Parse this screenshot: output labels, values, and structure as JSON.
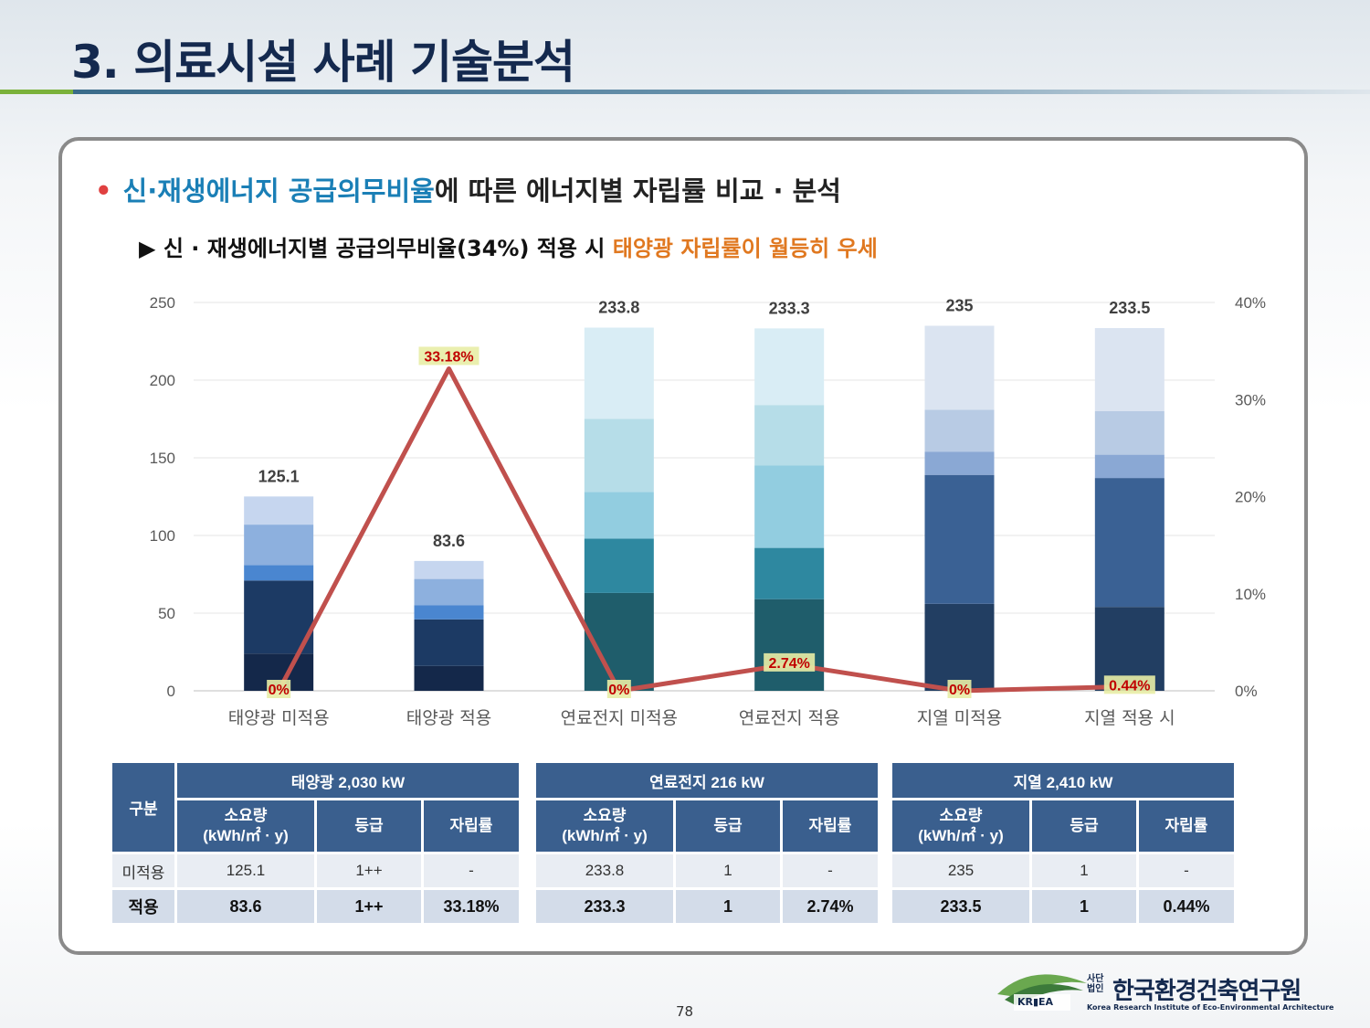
{
  "page": {
    "title": "3. 의료시설 사례 기술분석",
    "bullet_prefix": "•",
    "bullet_blue": "신·재생에너지 공급의무비율",
    "bullet_rest": "에 따른 에너지별 자립률 비교 · 분석",
    "sub_marker": "▶",
    "sub_text": " 신 · 재생에너지별 공급의무비율(34%) 적용 시 ",
    "sub_orange": "태양광 자립률이 월등히 우세",
    "page_number": "78"
  },
  "chart_data": {
    "type": "bar",
    "subtype": "stacked bar with line on secondary axis",
    "categories": [
      "태양광 미적용",
      "태양광 적용",
      "연료전지 미적용",
      "연료전지 적용",
      "지열 미적용",
      "지열 적용 시"
    ],
    "ylim": [
      0,
      250
    ],
    "yticks": [
      "0",
      "50",
      "100",
      "150",
      "200",
      "250"
    ],
    "y2lim": [
      0,
      40
    ],
    "y2ticks": [
      "0%",
      "10%",
      "20%",
      "30%",
      "40%"
    ],
    "totals": [
      125.1,
      83.6,
      233.8,
      233.3,
      235,
      233.5
    ],
    "total_labels": [
      "125.1",
      "83.6",
      "233.8",
      "233.3",
      "235",
      "233.5"
    ],
    "stacks": [
      [
        {
          "value": 24,
          "color": "#14284a"
        },
        {
          "value": 47,
          "color": "#1c3a64"
        },
        {
          "value": 10,
          "color": "#4a86d0"
        },
        {
          "value": 26,
          "color": "#8db0de"
        },
        {
          "value": 18.1,
          "color": "#c6d6ef"
        }
      ],
      [
        {
          "value": 16,
          "color": "#14284a"
        },
        {
          "value": 30,
          "color": "#1c3a64"
        },
        {
          "value": 9,
          "color": "#4a86d0"
        },
        {
          "value": 17,
          "color": "#8db0de"
        },
        {
          "value": 11.6,
          "color": "#c6d6ef"
        }
      ],
      [
        {
          "value": 63,
          "color": "#1f5d6b"
        },
        {
          "value": 35,
          "color": "#2e88a0"
        },
        {
          "value": 30,
          "color": "#92cde0"
        },
        {
          "value": 47,
          "color": "#b6dde8"
        },
        {
          "value": 58.8,
          "color": "#d9edf5"
        }
      ],
      [
        {
          "value": 59,
          "color": "#1f5d6b"
        },
        {
          "value": 33,
          "color": "#2e88a0"
        },
        {
          "value": 53,
          "color": "#92cde0"
        },
        {
          "value": 39,
          "color": "#b6dde8"
        },
        {
          "value": 49.3,
          "color": "#d9edf5"
        }
      ],
      [
        {
          "value": 56,
          "color": "#223e62"
        },
        {
          "value": 83,
          "color": "#3a6194"
        },
        {
          "value": 15,
          "color": "#8aa8d4"
        },
        {
          "value": 27,
          "color": "#b8cbe4"
        },
        {
          "value": 54,
          "color": "#dbe4f1"
        }
      ],
      [
        {
          "value": 54,
          "color": "#223e62"
        },
        {
          "value": 83,
          "color": "#3a6194"
        },
        {
          "value": 15,
          "color": "#8aa8d4"
        },
        {
          "value": 28,
          "color": "#b8cbe4"
        },
        {
          "value": 53.5,
          "color": "#dbe4f1"
        }
      ]
    ],
    "line": {
      "name": "자립률",
      "values": [
        0,
        33.18,
        0,
        2.74,
        0,
        0.44
      ],
      "labels": [
        "0%",
        "33.18%",
        "0%",
        "2.74%",
        "0%",
        "0.44%"
      ],
      "color": "#c0504d"
    }
  },
  "tables": {
    "row_header": "구분",
    "row_labels": [
      "미적용",
      "적용"
    ],
    "sub_headers": [
      "소요량\n(kWh/㎡ · y)",
      "등급",
      "자립률"
    ],
    "groups": [
      {
        "title": "태양광 2,030 kW",
        "before": [
          "125.1",
          "1++",
          "-"
        ],
        "after": [
          "83.6",
          "1++",
          "33.18%"
        ]
      },
      {
        "title": "연료전지 216 kW",
        "before": [
          "233.8",
          "1",
          "-"
        ],
        "after": [
          "233.3",
          "1",
          "2.74%"
        ]
      },
      {
        "title": "지열 2,410 kW",
        "before": [
          "235",
          "1",
          "-"
        ],
        "after": [
          "233.5",
          "1",
          "0.44%"
        ]
      }
    ]
  },
  "logo": {
    "abbr": "KR▮EA",
    "prefix": "사단\n법인",
    "name": "한국환경건축연구원",
    "english": "Korea Research Institute of Eco-Environmental Architecture",
    "green": "#6aa84f"
  }
}
